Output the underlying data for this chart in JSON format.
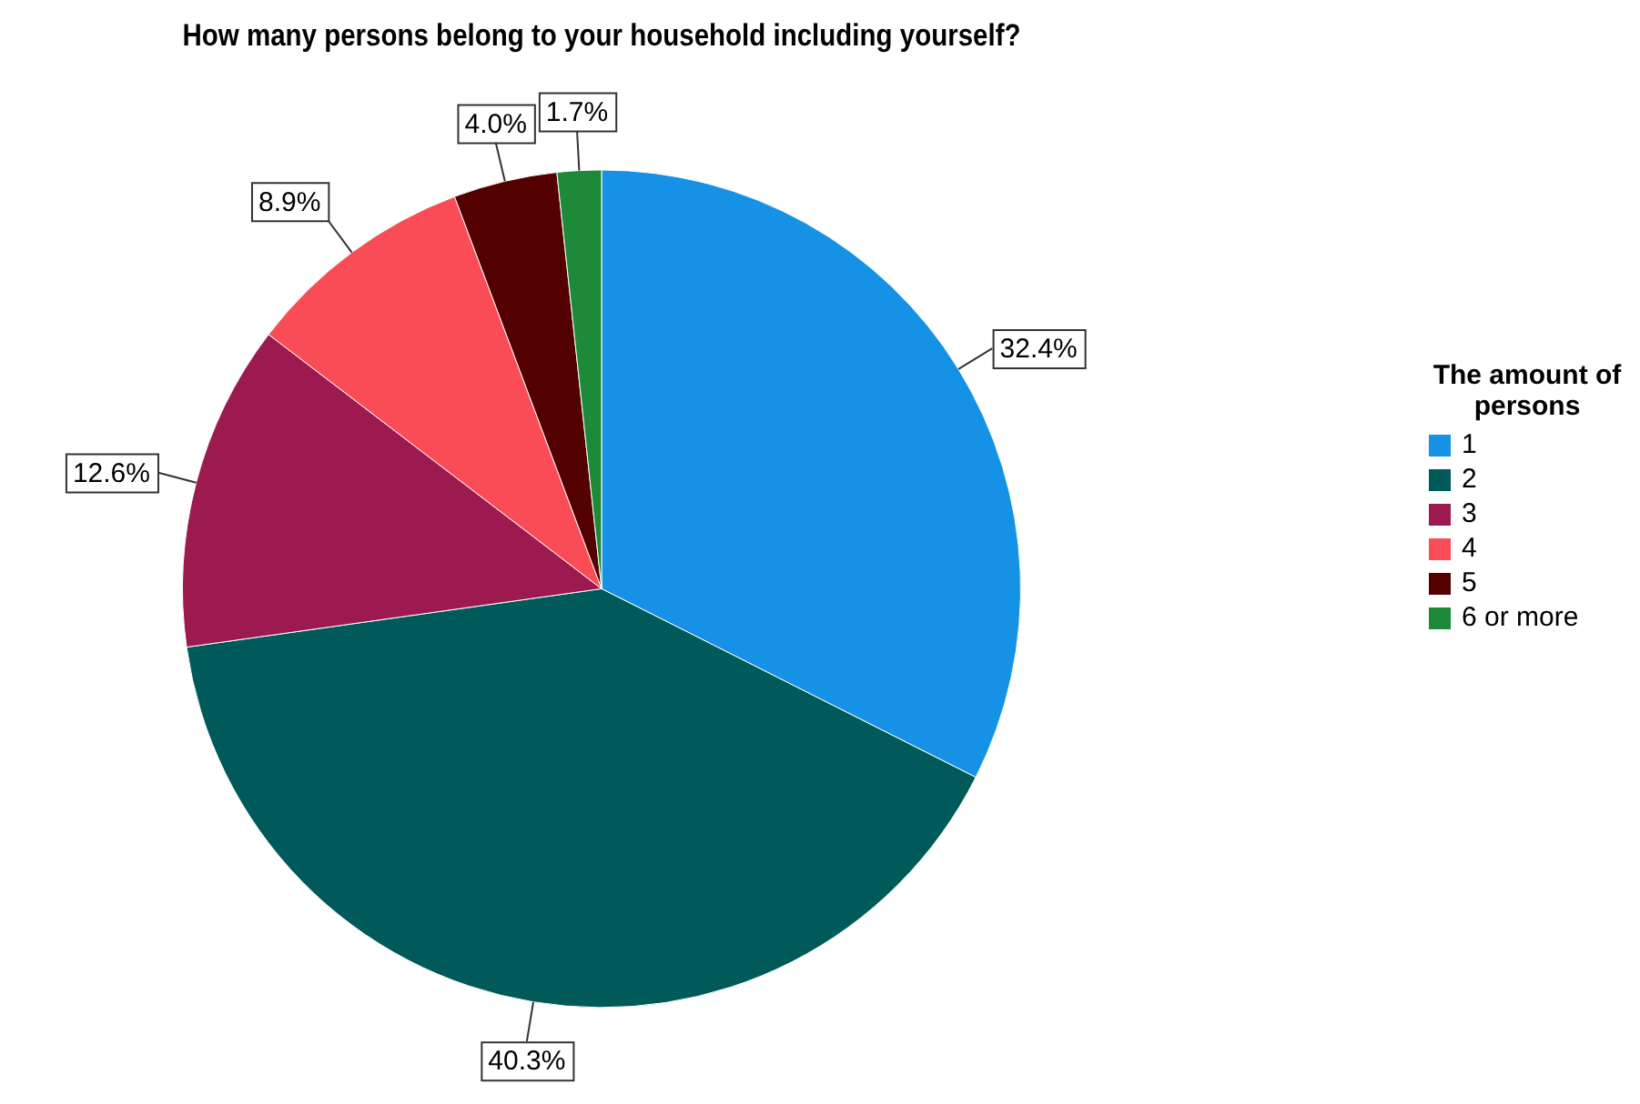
{
  "chart_data": {
    "type": "pie",
    "title": "How many persons belong to your household including yourself?",
    "legend_title": "The amount of persons",
    "legend": "right",
    "categories": [
      "1",
      "2",
      "3",
      "4",
      "5",
      "6 or more"
    ],
    "values": [
      32.4,
      40.3,
      12.6,
      8.9,
      4.0,
      1.7
    ],
    "colors": [
      "#1591e6",
      "#005a5a",
      "#9c1a4f",
      "#fa4c56",
      "#520000",
      "#1d8a3a"
    ],
    "value_labels": [
      "32.4%",
      "40.3%",
      "12.6%",
      "8.9%",
      "4.0%",
      "1.7%"
    ]
  }
}
